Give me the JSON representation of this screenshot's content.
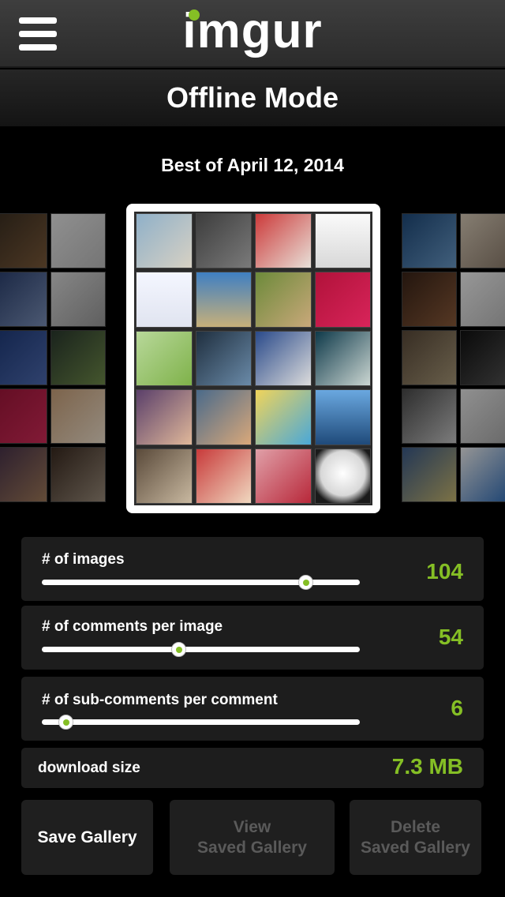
{
  "header": {
    "logo_text": "imgur",
    "logo_dot_color": "#85bf25",
    "menu_icon": "hamburger-menu-icon",
    "page_title": "Offline Mode"
  },
  "gallery": {
    "title": "Best of April 12, 2014"
  },
  "settings": {
    "images": {
      "label": "# of images",
      "value": "104",
      "slider_fraction": 0.83
    },
    "comments": {
      "label": "# of comments per image",
      "value": "54",
      "slider_fraction": 0.43
    },
    "subcomments": {
      "label": "# of sub-comments per comment",
      "value": "6",
      "slider_fraction": 0.075
    },
    "download": {
      "label": "download size",
      "value": "7.3 MB"
    }
  },
  "buttons": {
    "save": {
      "label": "Save Gallery"
    },
    "view": {
      "line1": "View",
      "line2": "Saved Gallery"
    },
    "delete": {
      "line1": "Delete",
      "line2": "Saved Gallery"
    }
  },
  "colors": {
    "accent": "#85bf25",
    "panel_bg": "#1d1d1d",
    "disabled_text": "#5a5a5a"
  }
}
